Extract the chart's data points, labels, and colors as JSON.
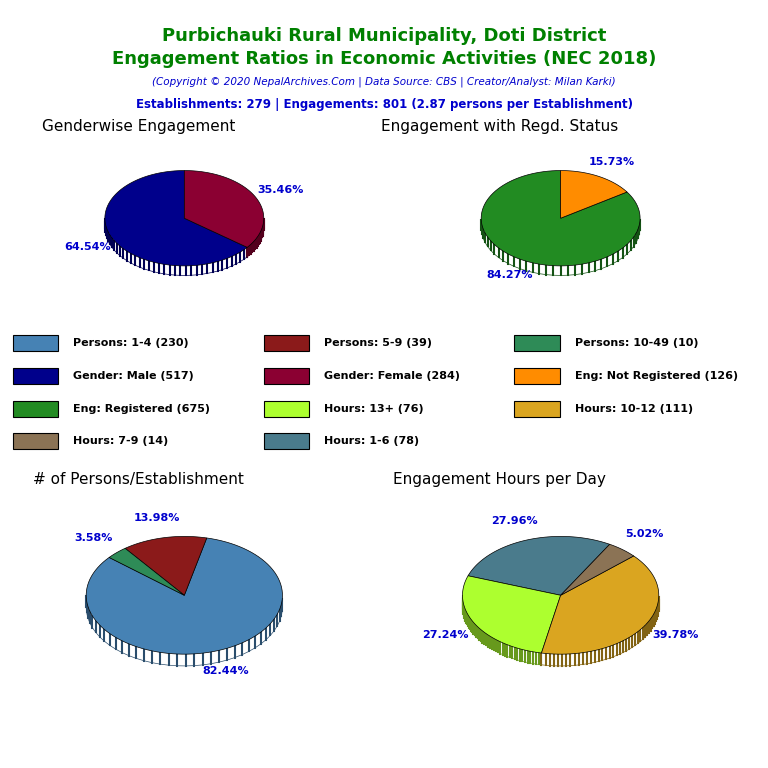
{
  "title_line1": "Purbichauki Rural Municipality, Doti District",
  "title_line2": "Engagement Ratios in Economic Activities (NEC 2018)",
  "subtitle": "(Copyright © 2020 NepalArchives.Com | Data Source: CBS | Creator/Analyst: Milan Karki)",
  "stats_line": "Establishments: 279 | Engagements: 801 (2.87 persons per Establishment)",
  "title_color": "#008000",
  "subtitle_color": "#0000CD",
  "stats_color": "#0000CD",
  "pie1_title": "Genderwise Engagement",
  "pie1_values": [
    64.54,
    35.46
  ],
  "pie1_colors": [
    "#00008B",
    "#8B0032"
  ],
  "pie1_labels": [
    "64.54%",
    "35.46%"
  ],
  "pie1_startangle": 90,
  "pie2_title": "Engagement with Regd. Status",
  "pie2_values": [
    84.27,
    15.73
  ],
  "pie2_colors": [
    "#228B22",
    "#FF8C00"
  ],
  "pie2_labels": [
    "84.27%",
    "15.73%"
  ],
  "pie2_startangle": 90,
  "pie3_title": "# of Persons/Establishment",
  "pie3_values": [
    82.44,
    13.98,
    3.58
  ],
  "pie3_colors": [
    "#4682B4",
    "#8B1A1A",
    "#2E8B57"
  ],
  "pie3_labels": [
    "82.44%",
    "13.98%",
    "3.58%"
  ],
  "pie3_startangle": 140,
  "pie4_title": "Engagement Hours per Day",
  "pie4_values": [
    27.96,
    27.24,
    39.78,
    5.02
  ],
  "pie4_colors": [
    "#4A7B8C",
    "#ADFF2F",
    "#DAA520",
    "#8B7355"
  ],
  "pie4_labels": [
    "27.96%",
    "27.24%",
    "39.78%",
    "5.02%"
  ],
  "pie4_startangle": 60,
  "legend_items": [
    {
      "label": "Persons: 1-4 (230)",
      "color": "#4682B4"
    },
    {
      "label": "Persons: 5-9 (39)",
      "color": "#8B1A1A"
    },
    {
      "label": "Persons: 10-49 (10)",
      "color": "#2E8B57"
    },
    {
      "label": "Gender: Male (517)",
      "color": "#00008B"
    },
    {
      "label": "Gender: Female (284)",
      "color": "#8B0032"
    },
    {
      "label": "Eng: Not Registered (126)",
      "color": "#FF8C00"
    },
    {
      "label": "Eng: Registered (675)",
      "color": "#228B22"
    },
    {
      "label": "Hours: 13+ (76)",
      "color": "#ADFF2F"
    },
    {
      "label": "Hours: 10-12 (111)",
      "color": "#DAA520"
    },
    {
      "label": "Hours: 7-9 (14)",
      "color": "#8B7355"
    },
    {
      "label": "Hours: 1-6 (78)",
      "color": "#4A7B8C"
    }
  ],
  "label_color": "#0000CD",
  "label_fontsize": 8,
  "pie_title_fontsize": 11
}
